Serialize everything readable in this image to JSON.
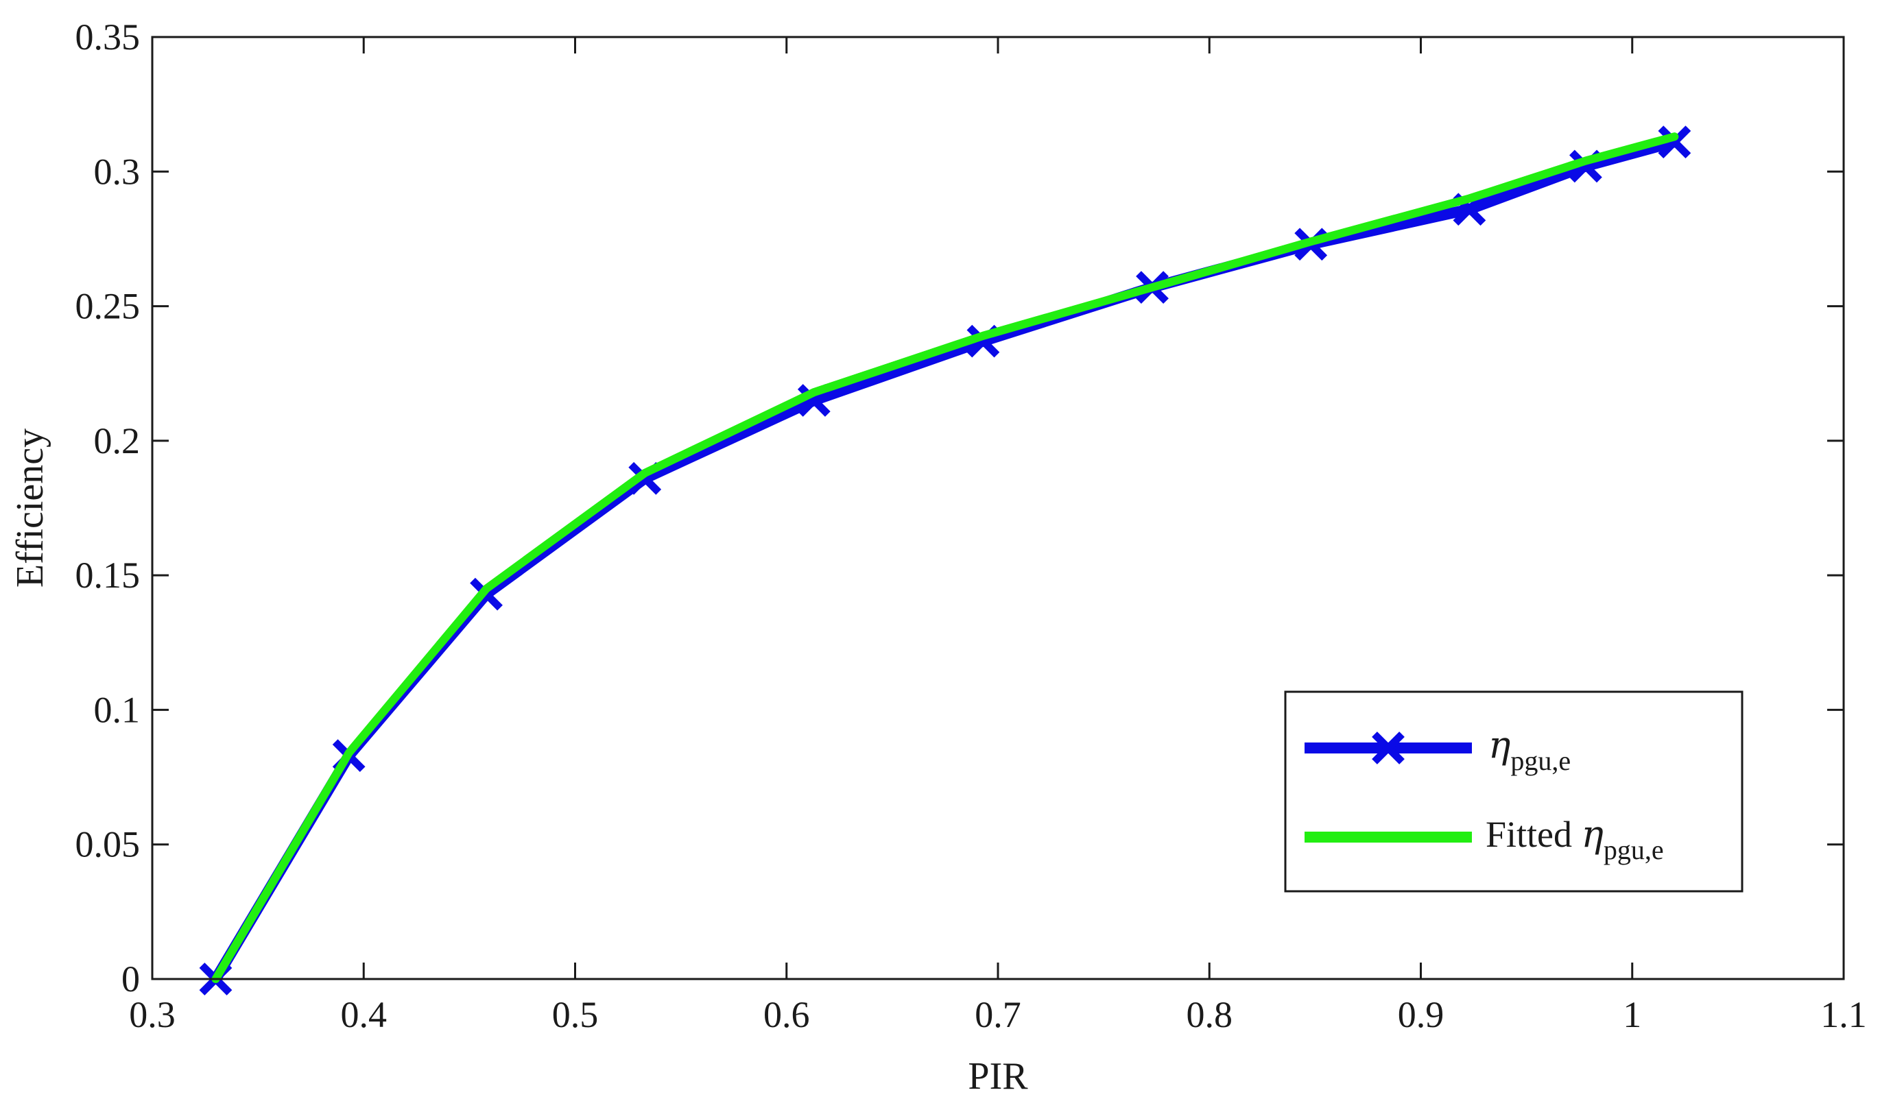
{
  "chart_data": {
    "type": "line",
    "xlabel": "PIR",
    "ylabel": "Efficiency",
    "xlim": [
      0.3,
      1.1
    ],
    "ylim": [
      0,
      0.35
    ],
    "xticks": [
      "0.3",
      "0.4",
      "0.5",
      "0.6",
      "0.7",
      "0.8",
      "0.9",
      "1",
      "1.1"
    ],
    "yticks": [
      "0",
      "0.05",
      "0.1",
      "0.15",
      "0.2",
      "0.25",
      "0.3",
      "0.35"
    ],
    "grid": false,
    "legend_position": "bottom-right",
    "series": [
      {
        "name_symbol": "η",
        "name_subscript": "pgu,e",
        "color": "#0a0ae6",
        "marker": "x",
        "x": [
          0.33,
          0.393,
          0.458,
          0.533,
          0.613,
          0.693,
          0.773,
          0.848,
          0.923,
          0.978,
          1.02
        ],
        "y": [
          0.0,
          0.083,
          0.143,
          0.186,
          0.215,
          0.237,
          0.257,
          0.273,
          0.286,
          0.302,
          0.311
        ]
      },
      {
        "name_prefix": "Fitted ",
        "name_symbol": "η",
        "name_subscript": "pgu,e",
        "color": "#22ee11",
        "marker": "none",
        "x": [
          0.33,
          0.393,
          0.458,
          0.533,
          0.613,
          0.693,
          0.773,
          0.848,
          0.923,
          0.978,
          1.02
        ],
        "y": [
          0.0,
          0.084,
          0.145,
          0.188,
          0.218,
          0.239,
          0.257,
          0.274,
          0.29,
          0.304,
          0.313
        ]
      }
    ]
  }
}
